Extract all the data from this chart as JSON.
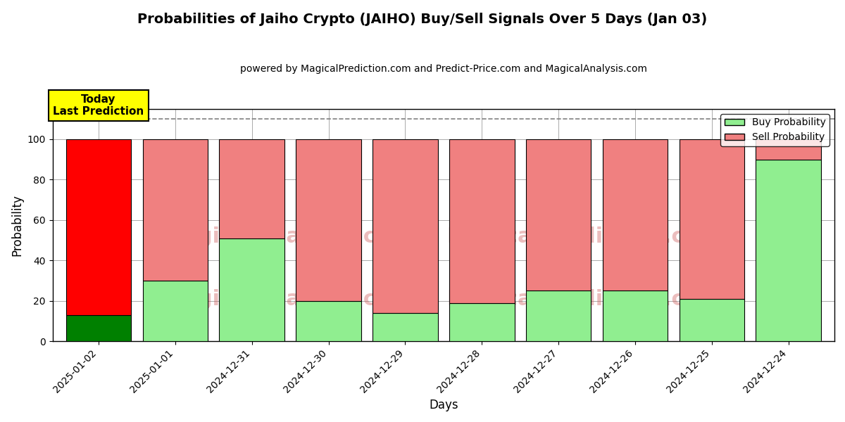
{
  "title": "Probabilities of Jaiho Crypto (JAIHO) Buy/Sell Signals Over 5 Days (Jan 03)",
  "subtitle": "powered by MagicalPrediction.com and Predict-Price.com and MagicalAnalysis.com",
  "xlabel": "Days",
  "ylabel": "Probability",
  "categories": [
    "2025-01-02",
    "2025-01-01",
    "2024-12-31",
    "2024-12-30",
    "2024-12-29",
    "2024-12-28",
    "2024-12-27",
    "2024-12-26",
    "2024-12-25",
    "2024-12-24"
  ],
  "buy_values": [
    13,
    30,
    51,
    20,
    14,
    19,
    25,
    25,
    21,
    90
  ],
  "sell_values": [
    87,
    70,
    49,
    80,
    86,
    81,
    75,
    75,
    79,
    10
  ],
  "buy_colors": [
    "#008000",
    "#90EE90",
    "#90EE90",
    "#90EE90",
    "#90EE90",
    "#90EE90",
    "#90EE90",
    "#90EE90",
    "#90EE90",
    "#90EE90"
  ],
  "sell_colors": [
    "#FF0000",
    "#F08080",
    "#F08080",
    "#F08080",
    "#F08080",
    "#F08080",
    "#F08080",
    "#F08080",
    "#F08080",
    "#F08080"
  ],
  "today_box_color": "#FFFF00",
  "today_label": "Today\nLast Prediction",
  "legend_buy_color": "#90EE90",
  "legend_sell_color": "#F08080",
  "dashed_line_y": 110,
  "ylim": [
    0,
    115
  ],
  "bar_width": 0.85,
  "background_color": "#ffffff",
  "grid_color": "#aaaaaa"
}
